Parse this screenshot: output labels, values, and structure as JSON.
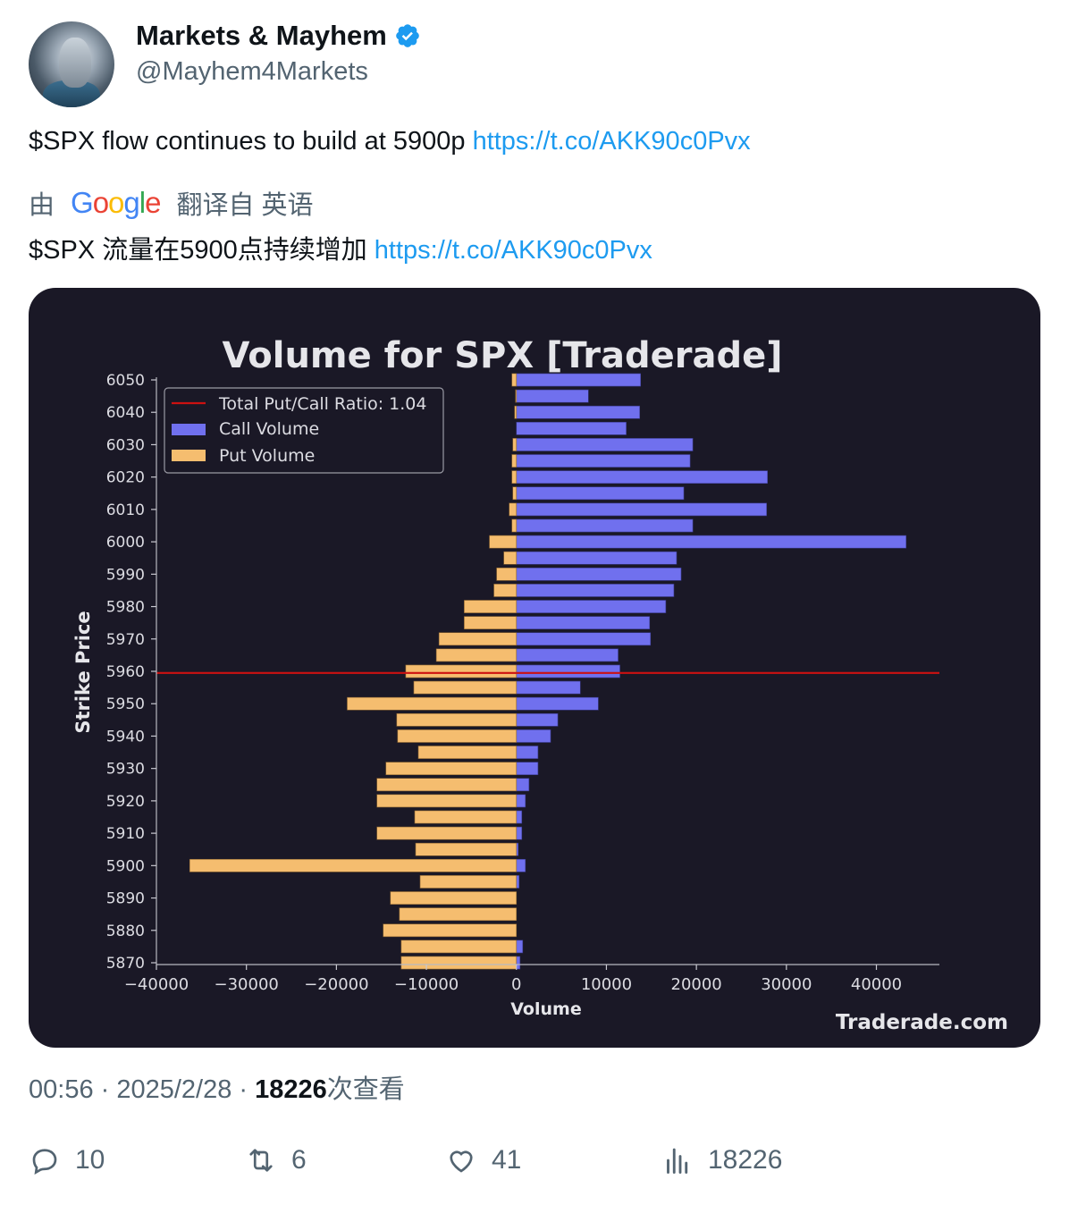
{
  "author": {
    "name": "Markets & Mayhem",
    "handle": "@Mayhem4Markets",
    "verified_color": "#1d9bf0"
  },
  "tweet": {
    "text": "$SPX flow continues to build at 5900p ",
    "link": "https://t.co/AKK90c0Pvx"
  },
  "translation": {
    "by_label": "由",
    "provider": "Google",
    "from_label": "翻译自 英语",
    "text": "$SPX 流量在5900点持续增加 ",
    "link": "https://t.co/AKK90c0Pvx"
  },
  "chart_data": {
    "type": "bar",
    "orientation": "horizontal",
    "title": "Volume for SPX [Traderade]",
    "xlabel": "Volume",
    "ylabel": "Strike Price",
    "watermark": "Traderade.com",
    "xlim": [
      -40000,
      47000
    ],
    "x_ticks": [
      -40000,
      -30000,
      -20000,
      -10000,
      0,
      10000,
      20000,
      30000,
      40000
    ],
    "x_tick_labels": [
      "−40000",
      "−30000",
      "−20000",
      "−10000",
      "0",
      "10000",
      "20000",
      "30000",
      "40000"
    ],
    "y_ticks": [
      6050,
      6040,
      6030,
      6020,
      6010,
      6000,
      5990,
      5980,
      5970,
      5960,
      5950,
      5940,
      5930,
      5920,
      5910,
      5900,
      5890,
      5880,
      5870
    ],
    "ratio_line": {
      "label": "Total Put/Call Ratio: 1.04",
      "strike": 5959.5,
      "color": "#cc1111"
    },
    "legend": [
      "Total Put/Call Ratio: 1.04",
      "Call Volume",
      "Put Volume"
    ],
    "legend_position": "top-left",
    "colors": {
      "call": "#7070ee",
      "put": "#f5bd6f",
      "background": "#1a1826"
    },
    "strikes": [
      6050,
      6045,
      6040,
      6035,
      6030,
      6025,
      6020,
      6015,
      6010,
      6005,
      6000,
      5995,
      5990,
      5985,
      5980,
      5975,
      5970,
      5965,
      5960,
      5955,
      5950,
      5945,
      5940,
      5935,
      5930,
      5925,
      5920,
      5915,
      5910,
      5905,
      5900,
      5895,
      5890,
      5885,
      5880,
      5875,
      5870
    ],
    "series": [
      {
        "name": "Call Volume",
        "values": [
          13800,
          8000,
          13700,
          12200,
          19600,
          19300,
          27900,
          18600,
          27800,
          19600,
          43300,
          17800,
          18300,
          17500,
          16600,
          14800,
          14900,
          11300,
          11500,
          7100,
          9100,
          4600,
          3800,
          2400,
          2400,
          1400,
          1000,
          600,
          600,
          200,
          1000,
          300,
          0,
          0,
          0,
          700,
          400
        ]
      },
      {
        "name": "Put Volume",
        "values": [
          -500,
          -100,
          -200,
          0,
          -400,
          -500,
          -500,
          -400,
          -800,
          -500,
          -3000,
          -1400,
          -2200,
          -2500,
          -5800,
          -5800,
          -8600,
          -8900,
          -12300,
          -11400,
          -18800,
          -13300,
          -13200,
          -10900,
          -14500,
          -15500,
          -15500,
          -11300,
          -15500,
          -11200,
          -36300,
          -10700,
          -14000,
          -13000,
          -14800,
          -12800,
          -12800
        ]
      }
    ]
  },
  "meta": {
    "time": "00:56 · 2025/2/28 · ",
    "views_count": "18226",
    "views_label": "次查看"
  },
  "actions": {
    "replies": "10",
    "retweets": "6",
    "likes": "41",
    "views": "18226"
  }
}
